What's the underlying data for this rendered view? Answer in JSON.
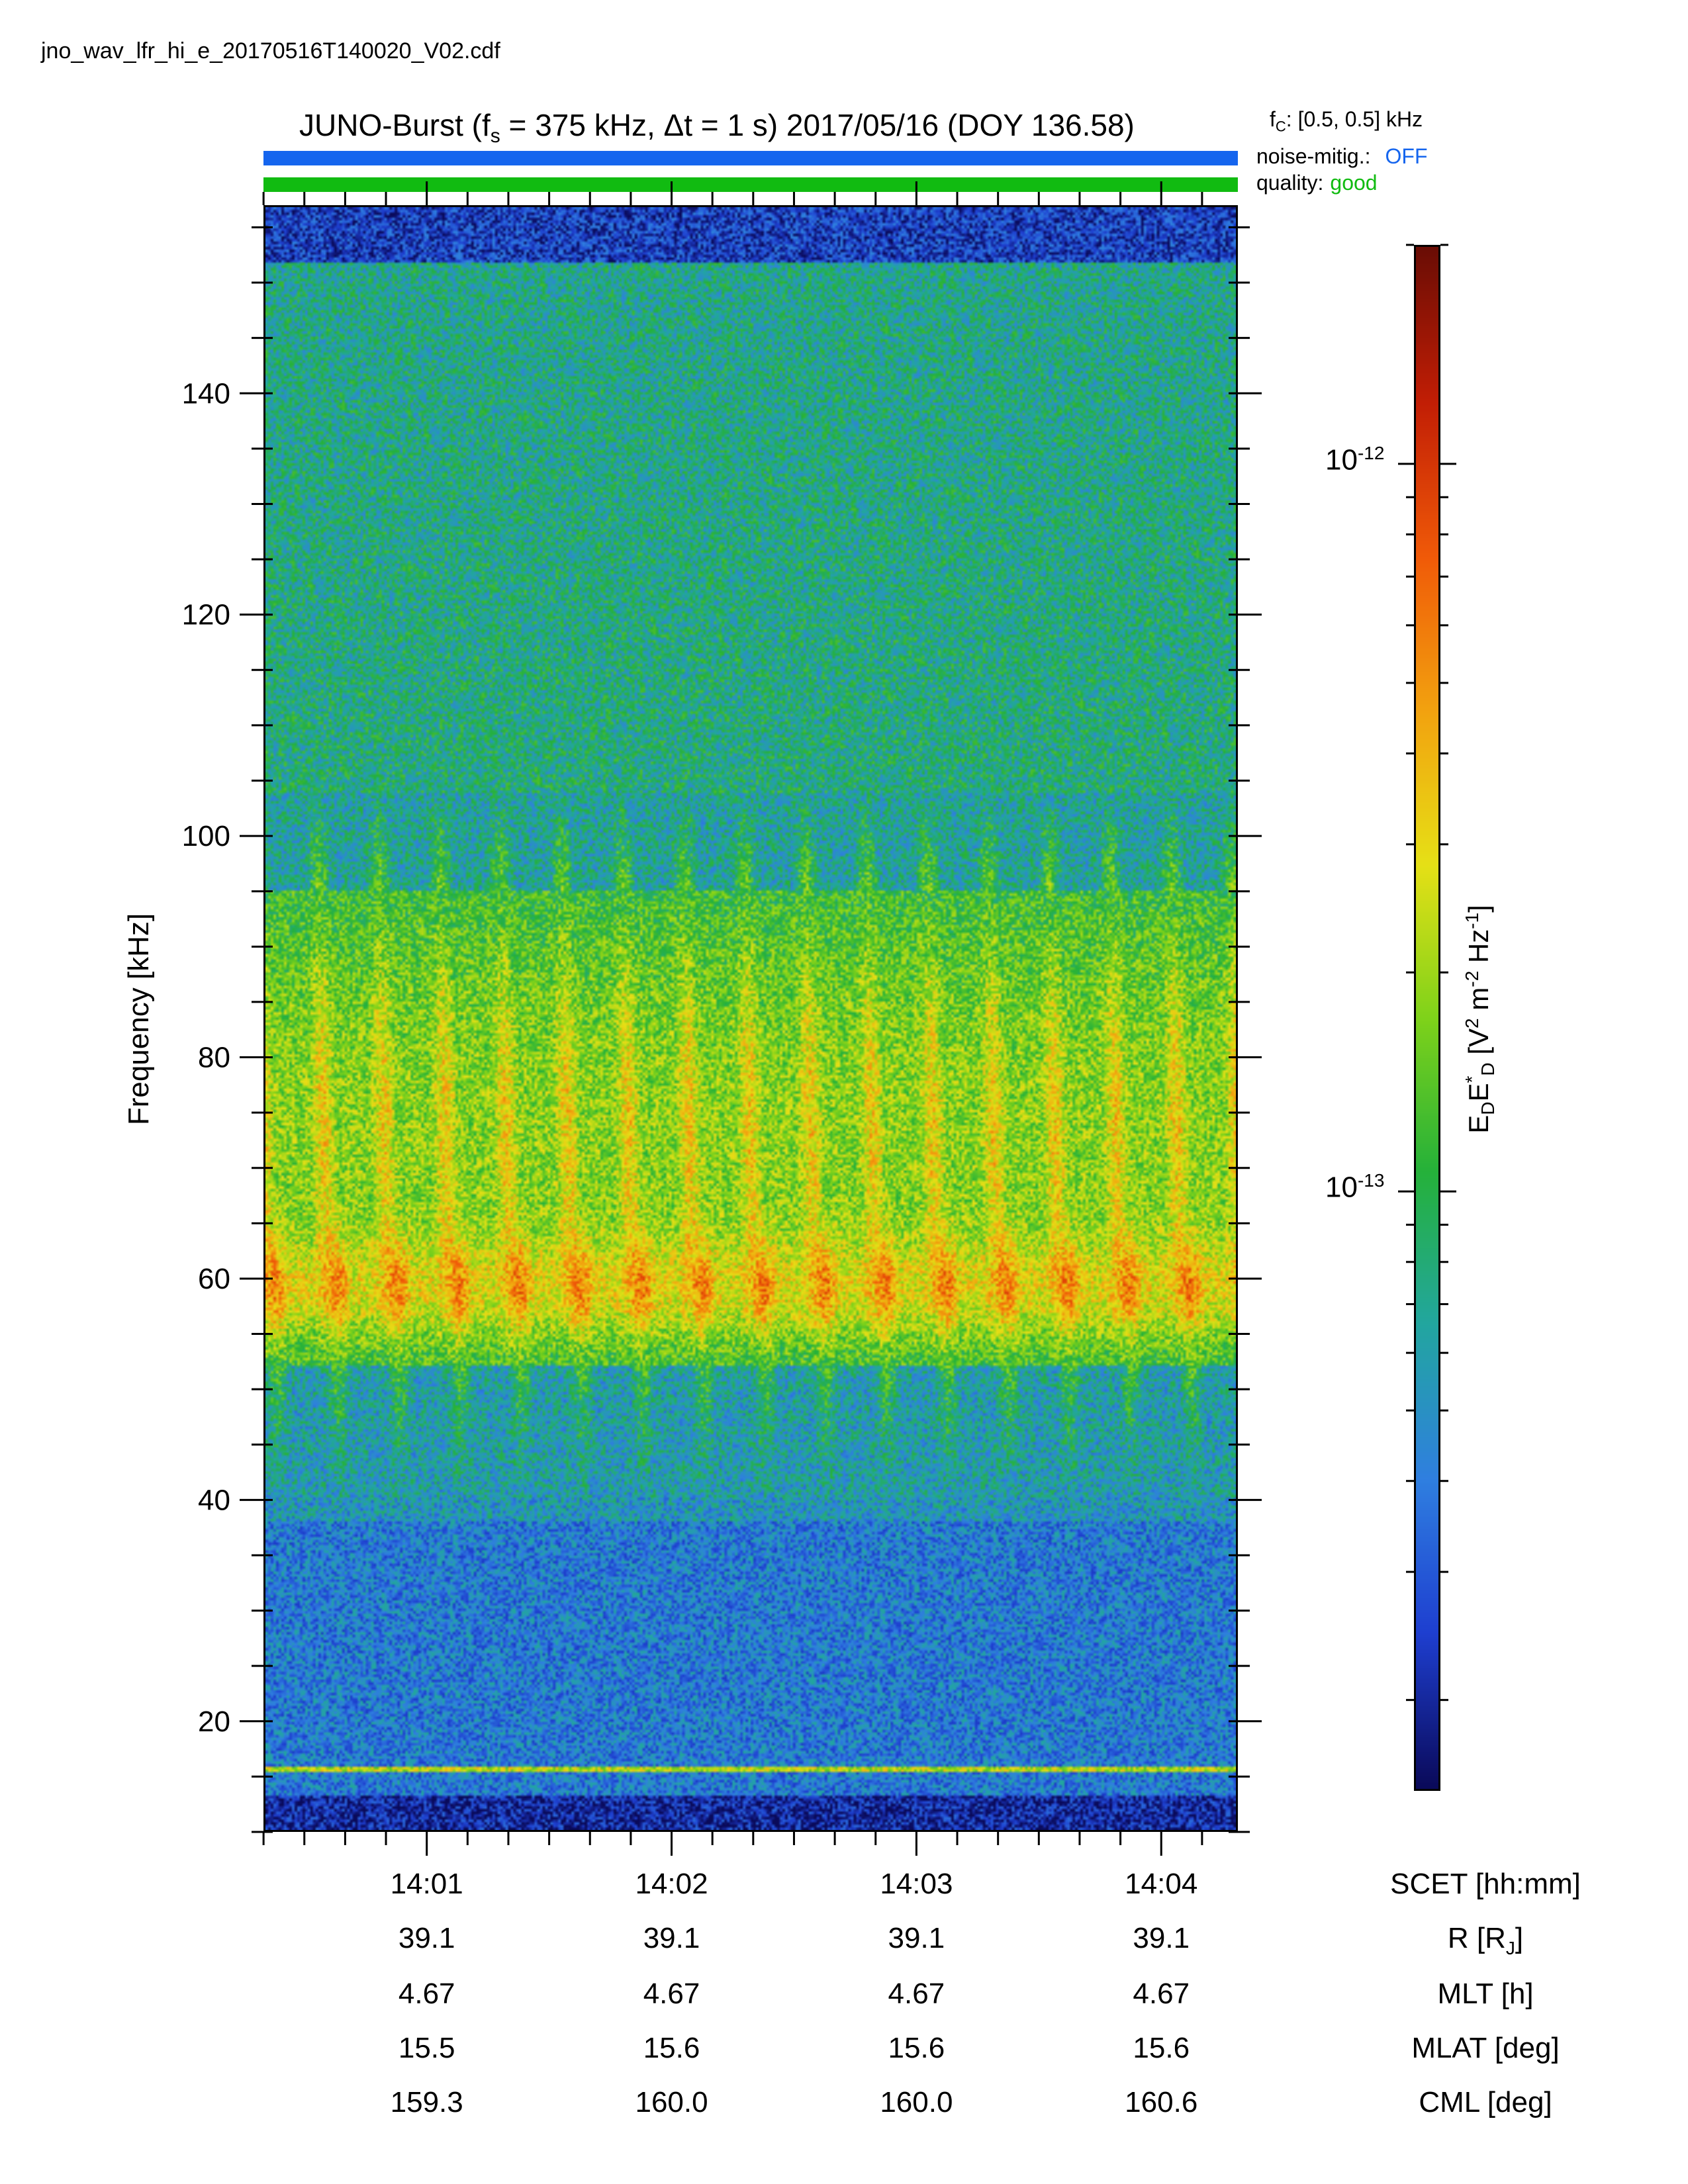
{
  "filename": "jno_wav_lfr_hi_e_20170516T140020_V02.cdf",
  "title": {
    "mission": "JUNO-Burst (f",
    "fs_sub": "s",
    "rest": " = 375 kHz, Δt = 1 s)  2017/05/16 (DOY 136.58)"
  },
  "side_info": {
    "fc_label": "f",
    "fc_sub": "C",
    "fc_value": ": [0.5, 0.5] kHz",
    "noise_label": "noise-mitig.:",
    "noise_value": "OFF",
    "quality_label": "quality:",
    "quality_value": "good"
  },
  "colors": {
    "noise_bar": "#1565ee",
    "quality_bar": "#11bb11"
  },
  "chart_data": {
    "type": "heatmap",
    "ylabel": "Frequency [kHz]",
    "ylim": [
      10,
      157
    ],
    "yticks": [
      20,
      40,
      60,
      80,
      100,
      120,
      140
    ],
    "xlim_minutes": [
      0.0,
      3.98
    ],
    "x_start": "14:00:20",
    "xticks": [
      {
        "label": "14:01",
        "t": 0.667
      },
      {
        "label": "14:02",
        "t": 1.667
      },
      {
        "label": "14:03",
        "t": 2.667
      },
      {
        "label": "14:04",
        "t": 3.667
      }
    ],
    "features": {
      "band_low_khz": 52,
      "band_high_khz": 95,
      "intense_line_khz": 59,
      "narrow_line_khz": 15.5,
      "stripe_period_s": 15,
      "note": "Striated emission band with bursts approximately every 15 seconds"
    },
    "colorbar": {
      "label_pre": "E",
      "label_sub1": "D",
      "label_mid": "E",
      "label_star": "*",
      "label_sub2": "D",
      "label_units_a": "  [V",
      "label_units_sup1": "2",
      "label_units_b": " m",
      "label_units_sup2": "-2",
      "label_units_c": " Hz",
      "label_units_sup3": "-1",
      "label_units_d": "]",
      "scale": "log",
      "range": [
        1.5e-14,
        2e-12
      ],
      "ticks": [
        {
          "base": "10",
          "exp": "-12",
          "value": 1e-12
        },
        {
          "base": "10",
          "exp": "-13",
          "value": 1e-13
        }
      ],
      "colormap": [
        "#0a0a5a",
        "#1e3fd0",
        "#2f7fe0",
        "#22a6a0",
        "#25b13a",
        "#7fd21a",
        "#e6e016",
        "#f2a20f",
        "#f05a08",
        "#c21e05",
        "#6b0d05"
      ]
    }
  },
  "ephemeris": {
    "rows": [
      {
        "label": "SCET [hh:mm]",
        "values": [
          "14:01",
          "14:02",
          "14:03",
          "14:04"
        ]
      },
      {
        "label_main": "R [R",
        "label_sub": "J",
        "label_end": "]",
        "values": [
          "39.1",
          "39.1",
          "39.1",
          "39.1"
        ]
      },
      {
        "label": "MLT [h]",
        "values": [
          "4.67",
          "4.67",
          "4.67",
          "4.67"
        ]
      },
      {
        "label": "MLAT [deg]",
        "values": [
          "15.5",
          "15.6",
          "15.6",
          "15.6"
        ]
      },
      {
        "label": "CML [deg]",
        "values": [
          "159.3",
          "160.0",
          "160.0",
          "160.6"
        ]
      }
    ]
  }
}
